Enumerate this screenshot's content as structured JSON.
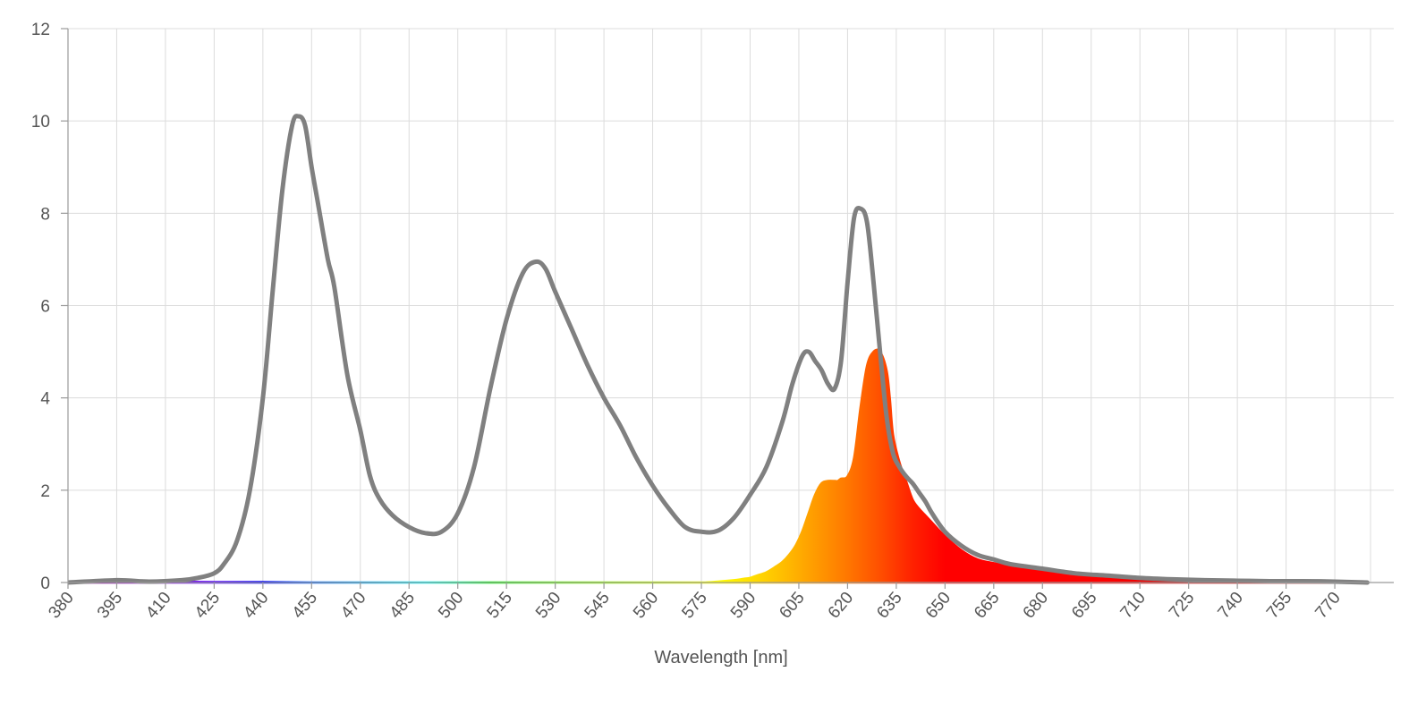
{
  "chart_data": {
    "type": "line",
    "title": "",
    "xlabel": "Wavelength [nm]",
    "ylabel": "",
    "xlim": [
      380,
      781
    ],
    "ylim": [
      0,
      12
    ],
    "x_ticks": [
      380,
      395,
      410,
      425,
      440,
      455,
      470,
      485,
      500,
      515,
      530,
      545,
      560,
      575,
      590,
      605,
      620,
      635,
      650,
      665,
      680,
      695,
      710,
      725,
      740,
      755,
      770
    ],
    "y_ticks": [
      0,
      2,
      4,
      6,
      8,
      10,
      12
    ],
    "x_tick_labels": [
      "380",
      "395",
      "410",
      "425",
      "440",
      "455",
      "470",
      "485",
      "500",
      "515",
      "530",
      "545",
      "560",
      "575",
      "590",
      "605",
      "620",
      "635",
      "650",
      "665",
      "680",
      "695",
      "710",
      "725",
      "740",
      "755",
      "770"
    ],
    "y_tick_labels": [
      "0",
      "2",
      "4",
      "6",
      "8",
      "10",
      "12"
    ],
    "grid": true,
    "legend": "none",
    "colors": {
      "total_line": "#808080",
      "grid": "#dcdcdc",
      "axis": "#9a9a9a"
    },
    "series": [
      {
        "style": "line",
        "x": [
          380,
          395,
          405,
          415,
          420,
          425,
          428,
          432,
          436,
          440,
          443,
          446,
          449,
          451,
          453,
          455,
          457,
          460,
          462,
          466,
          470,
          473,
          476,
          480,
          485,
          490,
          495,
          500,
          505,
          510,
          515,
          520,
          524,
          527,
          530,
          535,
          540,
          545,
          550,
          555,
          560,
          565,
          570,
          575,
          580,
          585,
          590,
          595,
          600,
          603,
          606,
          608,
          610,
          612,
          614,
          616,
          618,
          620,
          622,
          624,
          626,
          628,
          630,
          632,
          634,
          636,
          638,
          640,
          642,
          644,
          646,
          650,
          655,
          660,
          665,
          670,
          680,
          690,
          700,
          710,
          720,
          730,
          740,
          750,
          760,
          770,
          780
        ],
        "values": [
          0.0,
          0.05,
          0.02,
          0.05,
          0.1,
          0.2,
          0.4,
          0.9,
          2.0,
          4.0,
          6.3,
          8.5,
          9.9,
          10.1,
          9.9,
          9.0,
          8.2,
          7.0,
          6.4,
          4.5,
          3.3,
          2.3,
          1.8,
          1.45,
          1.2,
          1.07,
          1.1,
          1.5,
          2.5,
          4.2,
          5.7,
          6.7,
          6.95,
          6.8,
          6.3,
          5.5,
          4.7,
          4.0,
          3.4,
          2.7,
          2.1,
          1.6,
          1.2,
          1.1,
          1.12,
          1.4,
          1.9,
          2.5,
          3.5,
          4.3,
          4.9,
          5.0,
          4.8,
          4.6,
          4.3,
          4.2,
          4.8,
          6.5,
          7.9,
          8.1,
          7.8,
          6.5,
          5.0,
          3.6,
          2.8,
          2.5,
          2.3,
          2.15,
          1.95,
          1.75,
          1.5,
          1.1,
          0.8,
          0.6,
          0.5,
          0.4,
          0.3,
          0.2,
          0.15,
          0.1,
          0.07,
          0.05,
          0.04,
          0.03,
          0.03,
          0.02,
          0.0
        ]
      },
      {
        "style": "spectral-fill",
        "x": [
          380,
          395,
          410,
          425,
          440,
          455,
          470,
          485,
          500,
          515,
          530,
          545,
          560,
          575,
          580,
          585,
          588,
          590,
          592,
          595,
          598,
          600,
          602,
          604,
          606,
          608,
          610,
          612,
          614,
          616,
          617,
          618,
          620,
          622,
          624,
          626,
          628,
          630,
          632,
          633,
          634,
          636,
          638,
          640,
          642,
          644,
          646,
          650,
          655,
          660,
          665,
          670,
          680,
          690,
          700,
          710,
          720,
          730,
          740,
          750,
          760,
          770,
          780
        ],
        "values": [
          0.0,
          0.04,
          0.02,
          0.01,
          0.01,
          0.0,
          0.0,
          0.0,
          0.0,
          0.0,
          0.0,
          0.0,
          0.0,
          0.0,
          0.02,
          0.05,
          0.08,
          0.1,
          0.15,
          0.22,
          0.35,
          0.45,
          0.6,
          0.8,
          1.1,
          1.5,
          1.9,
          2.15,
          2.2,
          2.2,
          2.2,
          2.25,
          2.3,
          2.7,
          3.8,
          4.7,
          5.0,
          5.0,
          4.6,
          4.0,
          3.2,
          2.6,
          2.2,
          1.8,
          1.6,
          1.45,
          1.3,
          1.0,
          0.7,
          0.5,
          0.42,
          0.35,
          0.25,
          0.18,
          0.13,
          0.1,
          0.07,
          0.05,
          0.04,
          0.03,
          0.03,
          0.02,
          0.0
        ]
      }
    ]
  }
}
